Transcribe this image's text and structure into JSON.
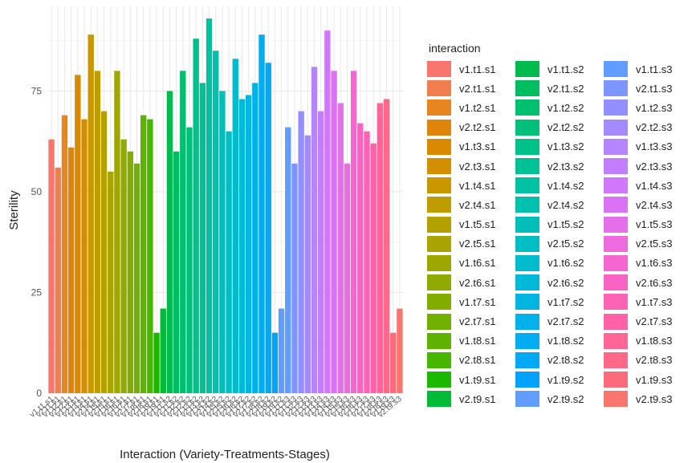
{
  "chart_data": {
    "type": "bar",
    "title": "",
    "xlabel": "Interaction (Variety-Treatments-Stages)",
    "ylabel": "Sterility",
    "ylim": [
      0,
      96
    ],
    "yticks": [
      0,
      25,
      50,
      75
    ],
    "grid": true,
    "legend_title": "interaction",
    "legend_position": "right",
    "categories": [
      "v1.t1.s1",
      "v2.t1.s1",
      "v1.t2.s1",
      "v2.t2.s1",
      "v1.t3.s1",
      "v2.t3.s1",
      "v1.t4.s1",
      "v2.t4.s1",
      "v1.t5.s1",
      "v2.t5.s1",
      "v1.t6.s1",
      "v2.t6.s1",
      "v1.t7.s1",
      "v2.t7.s1",
      "v1.t8.s1",
      "v2.t8.s1",
      "v1.t9.s1",
      "v2.t9.s1",
      "v1.t1.s2",
      "v2.t1.s2",
      "v1.t2.s2",
      "v2.t2.s2",
      "v1.t3.s2",
      "v2.t3.s2",
      "v1.t4.s2",
      "v2.t4.s2",
      "v1.t5.s2",
      "v2.t5.s2",
      "v1.t6.s2",
      "v2.t6.s2",
      "v1.t7.s2",
      "v2.t7.s2",
      "v1.t8.s2",
      "v2.t8.s2",
      "v1.t9.s2",
      "v2.t9.s2",
      "v1.t1.s3",
      "v2.t1.s3",
      "v1.t2.s3",
      "v2.t2.s3",
      "v1.t3.s3",
      "v2.t3.s3",
      "v1.t4.s3",
      "v2.t4.s3",
      "v1.t5.s3",
      "v2.t5.s3",
      "v1.t6.s3",
      "v2.t6.s3",
      "v1.t7.s3",
      "v2.t7.s3",
      "v1.t8.s3",
      "v2.t8.s3",
      "v1.t9.s3",
      "v2.t9.s3"
    ],
    "values": [
      63,
      56,
      69,
      61,
      79,
      68,
      89,
      80,
      70,
      55,
      80,
      63,
      60,
      57,
      69,
      68,
      15,
      21,
      75,
      60,
      80,
      66,
      88,
      77,
      93,
      85,
      75,
      65,
      83,
      73,
      74,
      77,
      89,
      82,
      15,
      21,
      66,
      57,
      70,
      64,
      81,
      70,
      90,
      80,
      72,
      57,
      80,
      67,
      65,
      62,
      72,
      73,
      15,
      21
    ],
    "colors": [
      "#F8766D",
      "#F07E4F",
      "#E7851E",
      "#E0850C",
      "#D98A00",
      "#D29000",
      "#C99800",
      "#BF9C00",
      "#B4A000",
      "#A9A400",
      "#9EA700",
      "#90AA00",
      "#82AD00",
      "#72B000",
      "#5EB300",
      "#46B600",
      "#1BB800",
      "#00BA38",
      "#00BC4F",
      "#00BD5F",
      "#00BF6E",
      "#00C07C",
      "#00C189",
      "#00C196",
      "#00C1A2",
      "#00C0AE",
      "#00BFBA",
      "#00BEC4",
      "#00BCCE",
      "#00B9D8",
      "#00B6E1",
      "#00B2E9",
      "#00ADF0",
      "#00A8F6",
      "#00A2FB",
      "#619CFF",
      "#619CFF",
      "#7D96FF",
      "#938FFF",
      "#A58AFF",
      "#B584FF",
      "#C37EFF",
      "#D077FB",
      "#DB72F5",
      "#E56EEB",
      "#EE6BDF",
      "#F566D1",
      "#F964C4",
      "#FC63B5",
      "#FF63A5",
      "#FF6596",
      "#FF6887",
      "#FC6B7B",
      "#F8766D"
    ]
  }
}
